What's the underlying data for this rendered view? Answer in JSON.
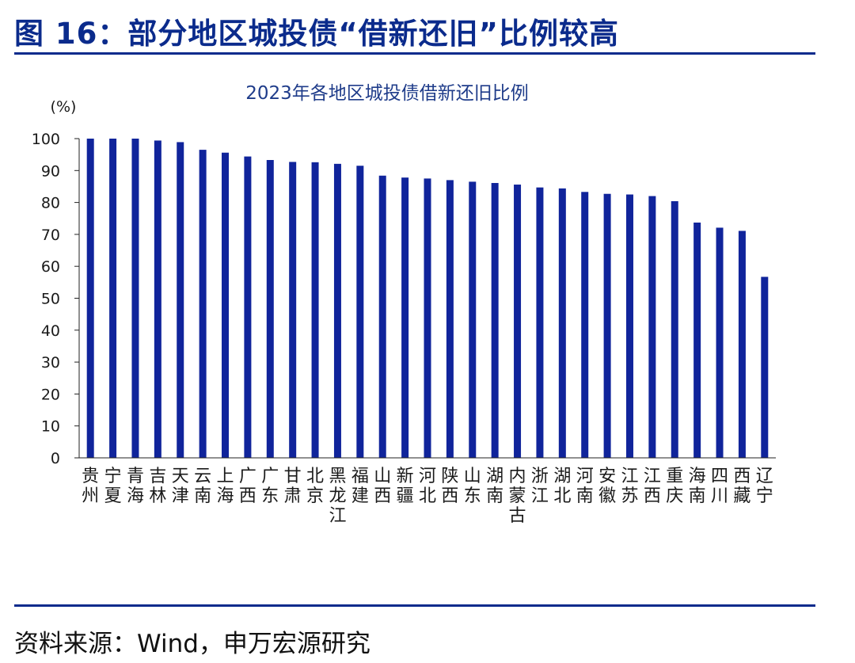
{
  "figure": {
    "title": "图 16：部分地区城投债“借新还旧”比例较高",
    "source": "资料来源：Wind，申万宏源研究"
  },
  "colors": {
    "accent": "#0b2b8c",
    "bar": "#10249b",
    "title_text": "#1f3c8a"
  },
  "chart_data": {
    "type": "bar",
    "title": "2023年各地区城投债借新还旧比例",
    "ylabel": "(%)",
    "xlabel": "",
    "ylim": [
      0,
      100
    ],
    "yticks": [
      0,
      10,
      20,
      30,
      40,
      50,
      60,
      70,
      80,
      90,
      100
    ],
    "grid": false,
    "legend": "none",
    "categories": [
      "贵州",
      "宁夏",
      "青海",
      "吉林",
      "天津",
      "云南",
      "上海",
      "广西",
      "广东",
      "甘肃",
      "北京",
      "黑龙江",
      "福建",
      "山西",
      "新疆",
      "河北",
      "陕西",
      "山东",
      "湖南",
      "内蒙古",
      "浙江",
      "湖北",
      "河南",
      "安徽",
      "江苏",
      "江西",
      "重庆",
      "海南",
      "四川",
      "西藏",
      "辽宁"
    ],
    "values": [
      100,
      100,
      100,
      99.4,
      98.9,
      96.5,
      95.6,
      94.4,
      93.3,
      92.7,
      92.6,
      92.1,
      91.5,
      88.4,
      87.8,
      87.5,
      87.0,
      86.5,
      86.1,
      85.6,
      84.7,
      84.4,
      83.3,
      82.7,
      82.5,
      82.0,
      80.4,
      73.7,
      72.1,
      71.1,
      56.7
    ]
  }
}
